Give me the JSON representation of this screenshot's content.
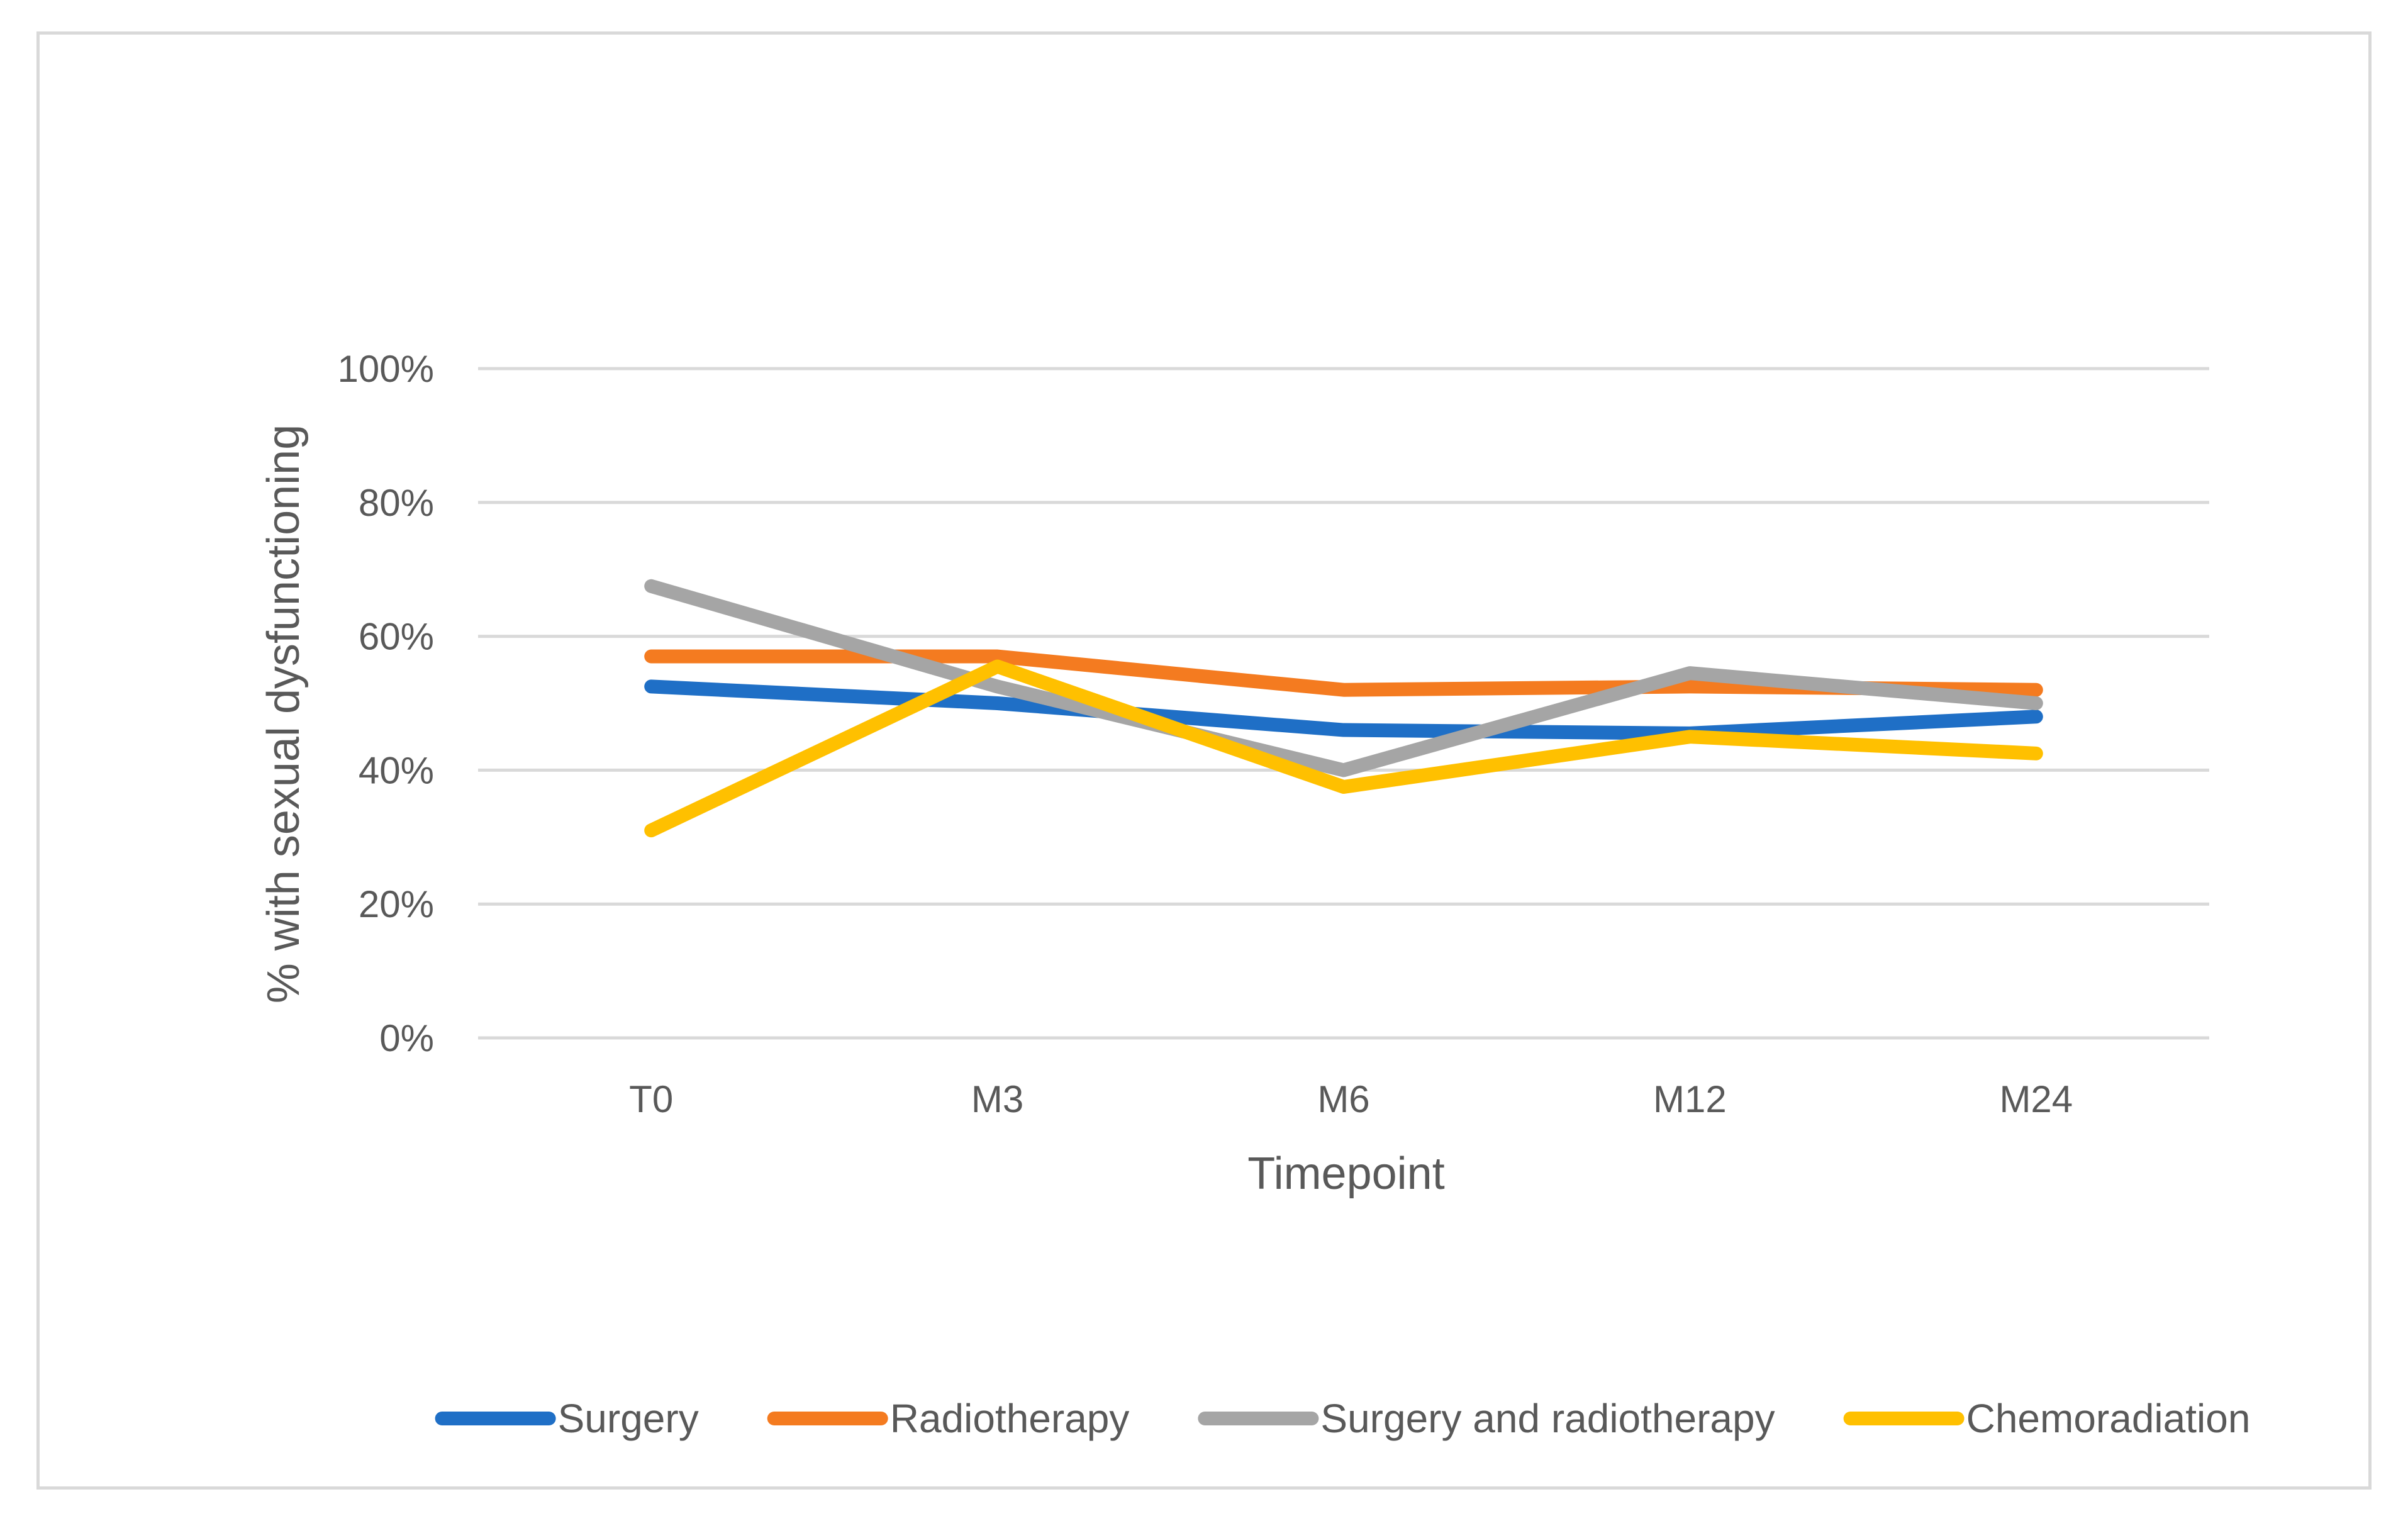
{
  "chart_data": {
    "type": "line",
    "title": "",
    "xlabel": "Timepoint",
    "ylabel": "% with sexual dysfunctioning",
    "categories": [
      "T0",
      "M3",
      "M6",
      "M12",
      "M24"
    ],
    "ylim": [
      0,
      100
    ],
    "yticks": [
      0,
      20,
      40,
      60,
      80,
      100
    ],
    "ytick_labels": [
      "0%",
      "20%",
      "40%",
      "60%",
      "80%",
      "100%"
    ],
    "grid": true,
    "legend_position": "bottom",
    "series": [
      {
        "name": "Surgery",
        "color": "#1f6fc6",
        "values": [
          52.5,
          50,
          46,
          45.5,
          48
        ]
      },
      {
        "name": "Radiotherapy",
        "color": "#f47b20",
        "values": [
          57,
          57,
          52,
          52.5,
          52
        ]
      },
      {
        "name": "Surgery and radiotherapy",
        "color": "#a5a5a5",
        "values": [
          67.5,
          52.5,
          40,
          54.5,
          50
        ]
      },
      {
        "name": "Chemoradiation",
        "color": "#ffc000",
        "values": [
          31,
          55.5,
          37.5,
          45,
          42.5
        ]
      }
    ]
  }
}
